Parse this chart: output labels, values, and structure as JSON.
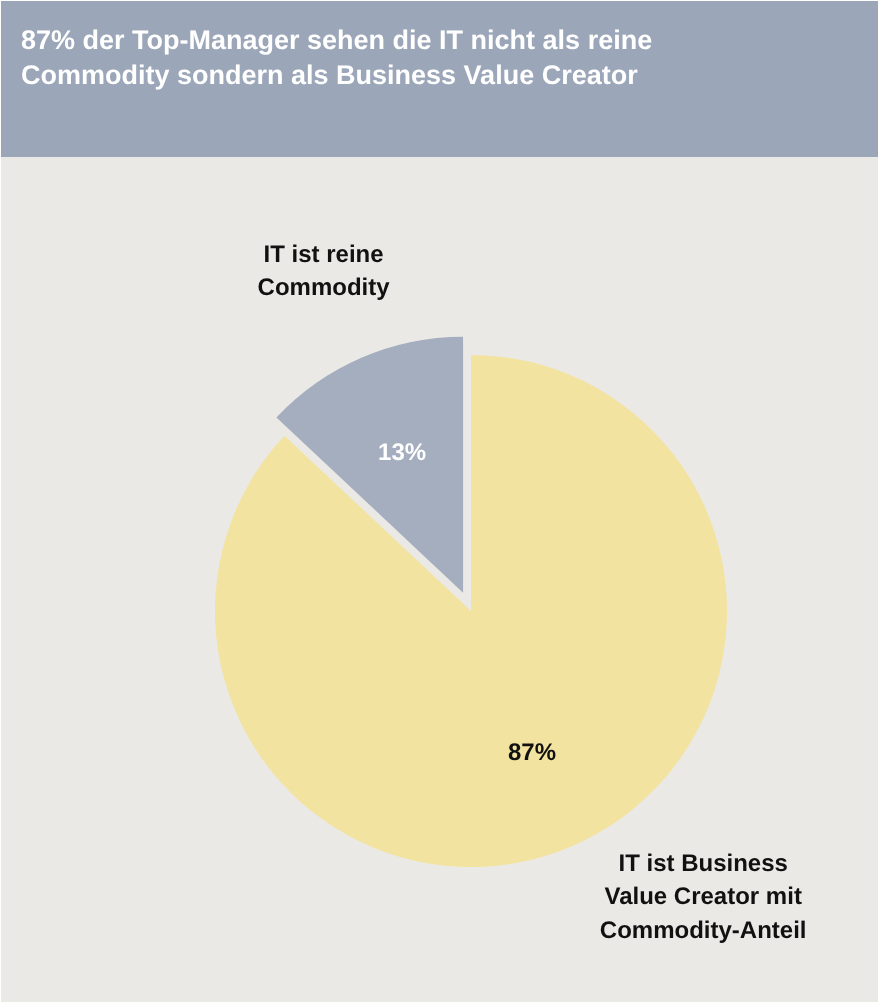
{
  "chart_data": {
    "type": "pie",
    "title": "87% der Top-Manager sehen die IT nicht als reine Commodity sondern als Business Value Creator",
    "categories": [
      "IT ist reine Commodity",
      "IT ist Business Value Creator mit Commodity-Anteil"
    ],
    "values": [
      13,
      87
    ],
    "colors": [
      "#a4aebf",
      "#f2e3a0"
    ],
    "value_labels": [
      "13%",
      "87%"
    ]
  }
}
